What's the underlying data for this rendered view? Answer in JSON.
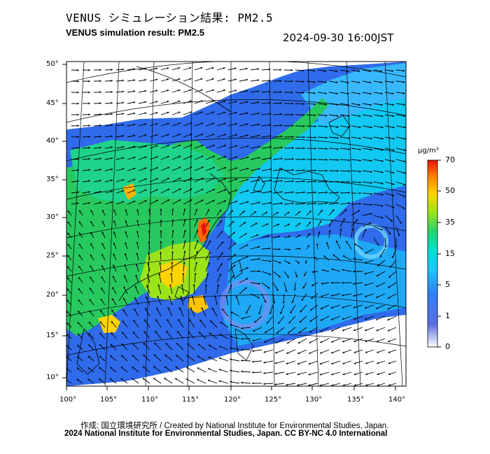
{
  "header": {
    "title_jp": "VENUS シミュレーション結果: PM2.5",
    "title_en": "VENUS simulation result: PM2.5",
    "timestamp": "2024-09-30 16:00JST"
  },
  "map": {
    "lon_ticks": [
      "100°",
      "105°",
      "110°",
      "115°",
      "120°",
      "125°",
      "130°",
      "135°",
      "140°"
    ],
    "lat_ticks": [
      "50°",
      "45°",
      "40°",
      "35°",
      "30°",
      "25°",
      "20°",
      "15°",
      "10°"
    ],
    "lon_range": [
      100,
      142
    ],
    "lat_range": [
      9,
      51
    ]
  },
  "colorbar": {
    "unit": "μg/m³",
    "ticks": [
      "70",
      "50",
      "35",
      "15",
      "5",
      "1",
      "0"
    ],
    "colors": [
      "#ffffff",
      "#3a4fd6",
      "#1e90ff",
      "#00e5ff",
      "#27d36b",
      "#9be41a",
      "#ffd400",
      "#ff7a00",
      "#e6140c"
    ]
  },
  "credits": {
    "line1": "作成: 国立環境研究所 / Created by National Institute for Environmental Studies, Japan.",
    "line2": "2024 National Institute for Environmental Studies, Japan. CC BY-NC 4.0 International"
  }
}
